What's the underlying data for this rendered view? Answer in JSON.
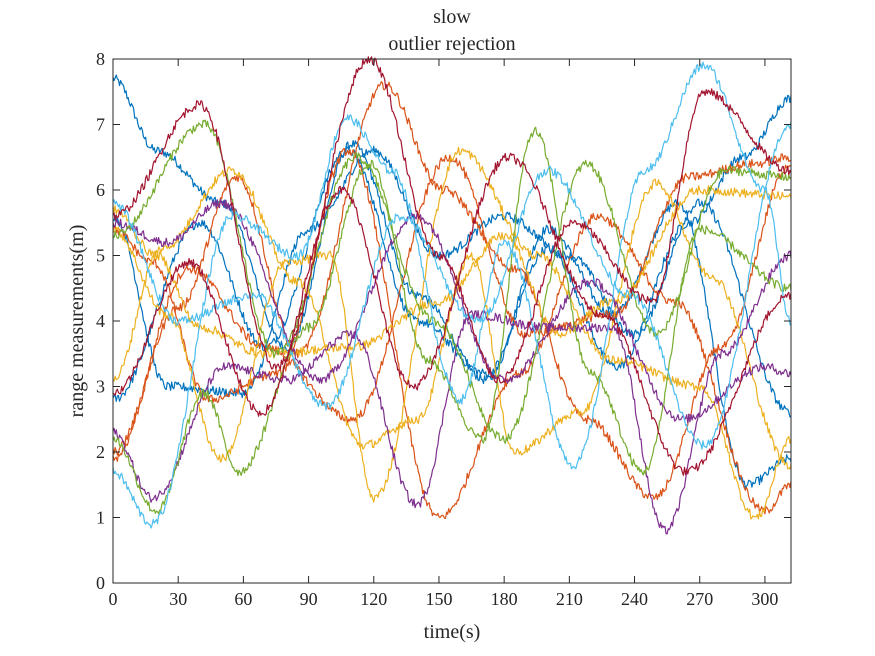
{
  "chart_data": {
    "type": "line",
    "title": "slow",
    "subtitle": "outlier rejection",
    "xlabel": "time(s)",
    "ylabel": "range measurements(m)",
    "xlim": [
      0,
      312
    ],
    "ylim": [
      0,
      8
    ],
    "xticks": [
      0,
      30,
      60,
      90,
      120,
      150,
      180,
      210,
      240,
      270,
      300
    ],
    "yticks": [
      0,
      1,
      2,
      3,
      4,
      5,
      6,
      7,
      8
    ],
    "grid": false,
    "legend": "none",
    "noise_amplitude": 0.07,
    "series": [
      {
        "color": "#0072BD",
        "x": [
          0,
          20,
          50,
          80,
          110,
          140,
          172,
          200,
          230,
          260,
          292,
          312
        ],
        "y": [
          7.7,
          6.6,
          5.8,
          3.6,
          6.7,
          4.4,
          3.1,
          5.4,
          4.1,
          5.8,
          1.5,
          1.9
        ]
      },
      {
        "color": "#0072BD",
        "x": [
          0,
          40,
          70,
          108,
          140,
          172,
          200,
          232,
          265,
          290,
          312
        ],
        "y": [
          2.8,
          5.5,
          3.6,
          6.6,
          4.0,
          3.2,
          5.1,
          3.3,
          5.5,
          6.5,
          7.4
        ]
      },
      {
        "color": "#0072BD",
        "x": [
          0,
          25,
          60,
          90,
          120,
          150,
          180,
          210,
          240,
          270,
          312
        ],
        "y": [
          5.6,
          3.0,
          2.9,
          5.4,
          6.6,
          5.0,
          5.6,
          5.0,
          3.8,
          5.8,
          2.6
        ]
      },
      {
        "color": "#D95319",
        "x": [
          0,
          30,
          57,
          85,
          125,
          152,
          185,
          218,
          249,
          280,
          312
        ],
        "y": [
          1.9,
          4.2,
          6.2,
          3.5,
          7.6,
          6.0,
          4.8,
          2.5,
          1.3,
          3.6,
          6.4
        ]
      },
      {
        "color": "#D95319",
        "x": [
          0,
          18,
          44,
          76,
          108,
          150,
          187,
          223,
          258,
          300,
          312
        ],
        "y": [
          5.4,
          4.9,
          2.8,
          3.2,
          6.6,
          1.0,
          3.2,
          5.6,
          4.3,
          1.1,
          1.5
        ]
      },
      {
        "color": "#D95319",
        "x": [
          0,
          35,
          70,
          110,
          155,
          190,
          230,
          265,
          295,
          312
        ],
        "y": [
          2.0,
          4.8,
          3.6,
          2.5,
          6.5,
          3.8,
          4.1,
          6.2,
          6.4,
          6.5
        ]
      },
      {
        "color": "#EDB120",
        "x": [
          0,
          22,
          55,
          85,
          115,
          140,
          165,
          185,
          215,
          250,
          275,
          312
        ],
        "y": [
          3.1,
          5.1,
          6.3,
          4.6,
          2.1,
          2.5,
          5.0,
          2.0,
          2.6,
          6.1,
          4.7,
          1.8
        ]
      },
      {
        "color": "#EDB120",
        "x": [
          0,
          25,
          50,
          80,
          100,
          120,
          160,
          195,
          230,
          270,
          296,
          312
        ],
        "y": [
          5.4,
          4.1,
          1.9,
          4.9,
          5.0,
          1.3,
          6.6,
          5.0,
          3.4,
          3.0,
          1.0,
          2.2
        ]
      },
      {
        "color": "#EDB120",
        "x": [
          0,
          20,
          40,
          70,
          110,
          150,
          180,
          205,
          230,
          270,
          312
        ],
        "y": [
          5.7,
          5.0,
          3.9,
          3.5,
          3.6,
          4.3,
          5.3,
          3.8,
          4.3,
          6.0,
          5.9
        ]
      },
      {
        "color": "#7E2F8E",
        "x": [
          0,
          18,
          52,
          80,
          110,
          140,
          165,
          200,
          230,
          254,
          280,
          312
        ],
        "y": [
          2.3,
          1.3,
          3.3,
          3.1,
          3.8,
          1.2,
          4.1,
          3.9,
          3.9,
          0.8,
          3.5,
          5.0
        ]
      },
      {
        "color": "#7E2F8E",
        "x": [
          0,
          25,
          50,
          95,
          140,
          180,
          220,
          262,
          300,
          312
        ],
        "y": [
          5.5,
          5.2,
          5.8,
          3.1,
          5.6,
          3.1,
          4.6,
          2.5,
          3.3,
          3.2
        ]
      },
      {
        "color": "#77AC30",
        "x": [
          0,
          20,
          42,
          58,
          90,
          118,
          145,
          170,
          194,
          220,
          244,
          270,
          312
        ],
        "y": [
          2.2,
          1.1,
          2.9,
          1.7,
          3.9,
          6.4,
          3.4,
          2.2,
          6.9,
          3.2,
          1.7,
          5.4,
          4.5
        ]
      },
      {
        "color": "#77AC30",
        "x": [
          0,
          42,
          75,
          112,
          148,
          180,
          218,
          250,
          282,
          312
        ],
        "y": [
          5.3,
          7.0,
          3.5,
          6.5,
          4.0,
          2.2,
          6.4,
          3.8,
          6.3,
          6.2
        ]
      },
      {
        "color": "#4DBEEE",
        "x": [
          0,
          18,
          55,
          85,
          108,
          128,
          160,
          180,
          212,
          245,
          272,
          300,
          312
        ],
        "y": [
          1.7,
          0.9,
          5.6,
          5.0,
          7.1,
          6.3,
          2.8,
          5.2,
          1.8,
          6.3,
          7.9,
          6.0,
          4.0
        ]
      },
      {
        "color": "#4DBEEE",
        "x": [
          0,
          30,
          65,
          98,
          132,
          168,
          200,
          238,
          272,
          312
        ],
        "y": [
          5.8,
          4.0,
          4.4,
          2.7,
          5.6,
          4.0,
          6.3,
          4.4,
          2.1,
          7.0
        ]
      },
      {
        "color": "#A2142F",
        "x": [
          0,
          40,
          75,
          118,
          150,
          178,
          212,
          248,
          272,
          312
        ],
        "y": [
          5.6,
          7.3,
          3.3,
          8.0,
          5.0,
          3.1,
          5.5,
          4.3,
          7.5,
          6.3
        ]
      },
      {
        "color": "#A2142F",
        "x": [
          0,
          35,
          68,
          105,
          138,
          182,
          225,
          264,
          312
        ],
        "y": [
          2.9,
          4.9,
          2.6,
          6.0,
          3.0,
          6.5,
          4.1,
          1.7,
          4.4
        ]
      }
    ]
  }
}
